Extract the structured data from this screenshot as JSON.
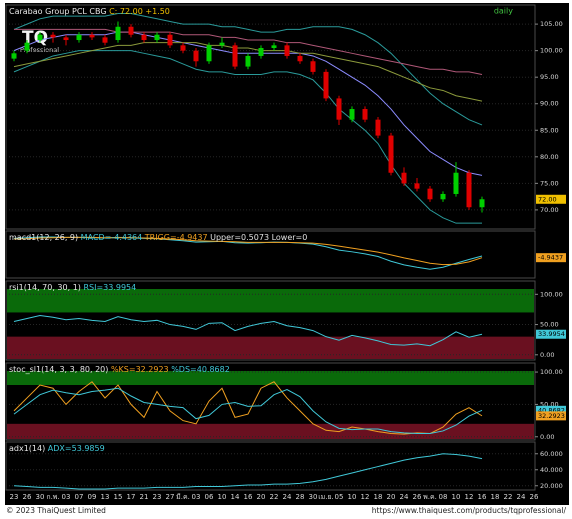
{
  "chart_data": [
    {
      "type": "candlestick",
      "title": "Carabao Group PCL CBG",
      "quote": "C: 72.00 +1.50",
      "interval": "daily",
      "categories": [
        "23",
        "26",
        "30",
        "ก.พ.",
        "03",
        "07",
        "09",
        "13",
        "15",
        "17",
        "21",
        "23",
        "27",
        "มี.ค.",
        "03",
        "06",
        "10",
        "14",
        "16",
        "20",
        "22",
        "24",
        "28",
        "30",
        "เม.ย.",
        "05",
        "10",
        "12",
        "18",
        "20",
        "24",
        "26",
        "พ.ค.",
        "08",
        "10",
        "12",
        "16",
        "18",
        "22",
        "24",
        "26"
      ],
      "open": [
        98.5,
        100,
        102,
        103,
        102.5,
        102,
        103,
        102.5,
        102,
        104.5,
        103,
        102,
        103,
        101,
        100,
        98,
        101,
        101,
        97,
        99,
        100.5,
        101,
        99,
        98,
        96,
        91,
        87,
        89,
        87,
        84,
        77,
        75,
        74,
        72,
        73,
        77,
        70.5,
        null,
        null,
        null,
        null
      ],
      "high": [
        100,
        102,
        103.5,
        103.5,
        103,
        103.5,
        103.5,
        103,
        105.5,
        105,
        103.5,
        103.5,
        103.5,
        101.5,
        100.5,
        101.5,
        102.5,
        101.5,
        99.5,
        101,
        101.5,
        101.5,
        99.5,
        98.5,
        96.5,
        91.5,
        89.5,
        89.5,
        87.5,
        84.5,
        78,
        76,
        74.5,
        73.5,
        79,
        77.5,
        72.5,
        null,
        null,
        null,
        null
      ],
      "low": [
        98,
        99.5,
        101.5,
        101.5,
        101,
        101.5,
        102,
        101,
        101.5,
        102.5,
        101.5,
        101.5,
        100.5,
        99.5,
        97,
        97.5,
        100.5,
        96.5,
        96.5,
        98.5,
        100,
        98.5,
        97.5,
        95.5,
        90.5,
        86,
        86.5,
        86.5,
        83.5,
        76.5,
        74.5,
        73.5,
        71.5,
        71.5,
        72.5,
        70,
        69.5,
        null,
        null,
        null,
        null
      ],
      "close": [
        99.5,
        101.5,
        103,
        102.5,
        102,
        103,
        102.5,
        101.5,
        104.5,
        103,
        102,
        103,
        101,
        100,
        98,
        101,
        101.5,
        97,
        99,
        100.5,
        101,
        99,
        98,
        96,
        91,
        87,
        89,
        87,
        84,
        77,
        75,
        74,
        72,
        73,
        77,
        70.5,
        72,
        null,
        null,
        null,
        null
      ],
      "up_color": "#00d000",
      "down_color": "#e00000",
      "series": [
        {
          "color": "#2a9a9a",
          "values": [
            104,
            105,
            106,
            106.5,
            106.5,
            106.5,
            106.5,
            106.5,
            107,
            107,
            106.5,
            106,
            105.5,
            105,
            105,
            105,
            104.5,
            104.5,
            104,
            103.5,
            103.5,
            104,
            104,
            104.5,
            104.5,
            104.5,
            104,
            103,
            101.5,
            99.5,
            97,
            94.5,
            92,
            90,
            88.5,
            87,
            86,
            null,
            null,
            null,
            null
          ]
        },
        {
          "color": "#2a9a9a",
          "values": [
            96,
            97,
            98,
            99,
            99.5,
            100,
            100,
            100,
            100,
            100,
            99.5,
            99,
            98.5,
            97.5,
            96.5,
            96,
            96,
            95.5,
            95.5,
            95.5,
            96,
            96,
            95.5,
            94.5,
            92,
            89,
            87,
            85,
            82.5,
            78.5,
            75,
            72.5,
            70,
            68.5,
            67.5,
            67.5,
            67.5,
            null,
            null,
            null,
            null
          ]
        },
        {
          "color": "#8c8cff",
          "values": [
            100,
            101,
            102,
            102.5,
            103,
            103,
            103,
            103,
            103.5,
            103.5,
            103,
            102.5,
            102,
            101.5,
            101,
            100.5,
            100,
            99.5,
            99.5,
            99.5,
            99.5,
            99.5,
            99.5,
            99,
            98,
            96.5,
            95,
            93.5,
            91.5,
            89,
            86,
            83.5,
            81,
            79.5,
            78,
            77,
            76.5,
            null,
            null,
            null,
            null
          ]
        },
        {
          "color": "#b05878",
          "values": [
            104,
            104,
            104,
            104,
            104,
            104,
            104,
            104,
            103.5,
            103.5,
            103.5,
            103.5,
            103.5,
            103,
            103,
            103,
            102.5,
            102.5,
            102,
            102,
            102,
            101.5,
            101.5,
            101,
            100.5,
            100,
            99.5,
            99,
            98.5,
            98,
            97.5,
            97,
            96.5,
            96.5,
            96,
            96,
            95.5,
            null,
            null,
            null,
            null
          ]
        },
        {
          "color": "#8c9a3c",
          "values": [
            97,
            97.5,
            98,
            98.5,
            99,
            99.5,
            100,
            100.5,
            101,
            101,
            101.5,
            101.5,
            101.5,
            101.5,
            101.5,
            101,
            101,
            100.5,
            100.5,
            100,
            100,
            100,
            99.5,
            99.5,
            99,
            98.5,
            98,
            97.5,
            97,
            96,
            95,
            94,
            93,
            92.5,
            91.5,
            91,
            90.5,
            null,
            null,
            null,
            null
          ]
        }
      ],
      "ylim": [
        66.4,
        108.6
      ],
      "yticks": [
        {
          "value": 105,
          "label": "105.00"
        },
        {
          "value": 100,
          "label": "100.00"
        },
        {
          "value": 95,
          "label": "95.00"
        },
        {
          "value": 90,
          "label": "90.00"
        },
        {
          "value": 85,
          "label": "85.00"
        },
        {
          "value": 80,
          "label": "80.00"
        },
        {
          "value": 75,
          "label": "75.00"
        },
        {
          "value": 70,
          "label": "70.00"
        }
      ],
      "markers": [
        {
          "value": 72,
          "label": "72.00",
          "color": "#f0c000"
        }
      ]
    },
    {
      "type": "line",
      "title": "macd1(12, 26, 9)",
      "readouts": [
        {
          "text": "MACD=-4.4364",
          "color": "#40c8d8"
        },
        {
          "text": "TRIGG=-4.9437",
          "color": "#f0a020"
        },
        {
          "text": "Upper=0.5073 Lower=0",
          "color": "#e0e0e0"
        }
      ],
      "series": [
        {
          "color": "#40c8d8",
          "values": [
            0.8,
            1,
            1.2,
            1.2,
            1.1,
            1.1,
            1,
            0.9,
            1.1,
            1,
            0.8,
            0.7,
            0.4,
            0.1,
            -0.3,
            -0.2,
            -0.1,
            -0.5,
            -0.6,
            -0.5,
            -0.3,
            -0.4,
            -0.6,
            -0.9,
            -1.7,
            -2.7,
            -3.2,
            -3.8,
            -4.6,
            -6,
            -7.1,
            -7.8,
            -8.4,
            -7.8,
            -6.6,
            -5.5,
            -4.4364,
            null,
            null,
            null,
            null
          ]
        },
        {
          "color": "#f0a020",
          "values": [
            0.6,
            0.7,
            0.9,
            1,
            1.1,
            1.1,
            1.1,
            1,
            1,
            1,
            0.9,
            0.8,
            0.6,
            0.4,
            0.1,
            0,
            -0.1,
            -0.2,
            -0.4,
            -0.4,
            -0.4,
            -0.4,
            -0.5,
            -0.6,
            -1,
            -1.5,
            -2.1,
            -2.7,
            -3.3,
            -4.1,
            -5,
            -5.8,
            -6.6,
            -7,
            -6.9,
            -6.2,
            -4.9437,
            null,
            null,
            null,
            null
          ]
        }
      ],
      "ylim": [
        -11,
        3
      ],
      "markers": [
        {
          "value": -4.9437,
          "color": "#f0a020"
        }
      ]
    },
    {
      "type": "line",
      "title": "rsi1(14, 70, 30, 1)",
      "readouts": [
        {
          "text": "RSI=33.9954",
          "color": "#40c8d8"
        }
      ],
      "zones": [
        {
          "from": 70,
          "color": "#0a6a0a"
        },
        {
          "to": 30,
          "color": "#6a1020"
        }
      ],
      "series": [
        {
          "color": "#40c8d8",
          "values": [
            55,
            60,
            65,
            62,
            58,
            60,
            57,
            55,
            63,
            58,
            55,
            57,
            50,
            47,
            42,
            52,
            53,
            40,
            47,
            52,
            55,
            48,
            45,
            40,
            30,
            24,
            32,
            28,
            23,
            17,
            16,
            18,
            15,
            25,
            38,
            29,
            33.9954,
            null,
            null,
            null,
            null
          ]
        }
      ],
      "ylim": [
        -8.6,
        122
      ],
      "yticks": [
        {
          "value": 100,
          "label": "100.00"
        },
        {
          "value": 50,
          "label": "50.00"
        },
        {
          "value": 0,
          "label": "0.00"
        }
      ],
      "markers": [
        {
          "value": 33.9954,
          "color": "#40c8d8"
        }
      ]
    },
    {
      "type": "line",
      "title": "stoc_sl1(14, 3, 3, 80, 20)",
      "readouts": [
        {
          "text": "%KS=32.2923",
          "color": "#f0a020"
        },
        {
          "text": "%DS=40.8682",
          "color": "#40c8d8"
        }
      ],
      "zones": [
        {
          "from": 80,
          "color": "#0a6a0a"
        },
        {
          "to": 20,
          "color": "#6a1020"
        }
      ],
      "series": [
        {
          "color": "#f0a020",
          "values": [
            40,
            60,
            80,
            75,
            50,
            70,
            85,
            60,
            80,
            50,
            30,
            70,
            40,
            25,
            20,
            55,
            75,
            30,
            35,
            75,
            85,
            60,
            40,
            20,
            10,
            8,
            15,
            12,
            8,
            5,
            4,
            6,
            5,
            15,
            35,
            45,
            32.2923,
            null,
            null,
            null,
            null
          ]
        },
        {
          "color": "#40c8d8",
          "values": [
            35,
            50,
            65,
            72,
            68,
            65,
            70,
            72,
            75,
            63,
            53,
            50,
            47,
            45,
            28,
            33,
            50,
            53,
            47,
            48,
            65,
            73,
            62,
            40,
            23,
            13,
            11,
            12,
            12,
            8,
            6,
            5,
            5,
            9,
            18,
            32,
            40.8682,
            null,
            null,
            null,
            null
          ]
        }
      ],
      "ylim": [
        -5,
        114
      ],
      "yticks": [
        {
          "value": 100,
          "label": "100.00"
        },
        {
          "value": 50,
          "label": "50.00"
        },
        {
          "value": 0,
          "label": "0.00"
        }
      ],
      "markers": [
        {
          "value": 40.8682,
          "color": "#40c8d8"
        },
        {
          "value": 32.2923,
          "color": "#f0a020"
        }
      ]
    },
    {
      "type": "line",
      "title": "adx1(14)",
      "readouts": [
        {
          "text": "ADX=53.9859",
          "color": "#40c8d8"
        }
      ],
      "series": [
        {
          "color": "#40c8d8",
          "values": [
            20,
            19,
            18,
            18,
            17,
            16,
            16,
            16,
            17,
            17,
            17,
            18,
            18,
            18,
            19,
            19,
            19,
            20,
            21,
            21,
            22,
            22,
            23,
            25,
            28,
            32,
            36,
            40,
            44,
            48,
            52,
            55,
            57,
            60,
            59,
            57,
            53.9859,
            null,
            null,
            null,
            null
          ]
        }
      ],
      "ylim": [
        14.7,
        74.7
      ],
      "yticks": [
        {
          "value": 60,
          "label": "60.000"
        },
        {
          "value": 40,
          "label": "40.000"
        },
        {
          "value": 20,
          "label": "20.000"
        }
      ]
    }
  ],
  "logo": {
    "mark": "TQ",
    "text": "Professional"
  },
  "footer": {
    "copyright": "© 2023 ThaiQuest Limited",
    "url": "https://www.thaiquest.com/products/tqprofessional/"
  }
}
